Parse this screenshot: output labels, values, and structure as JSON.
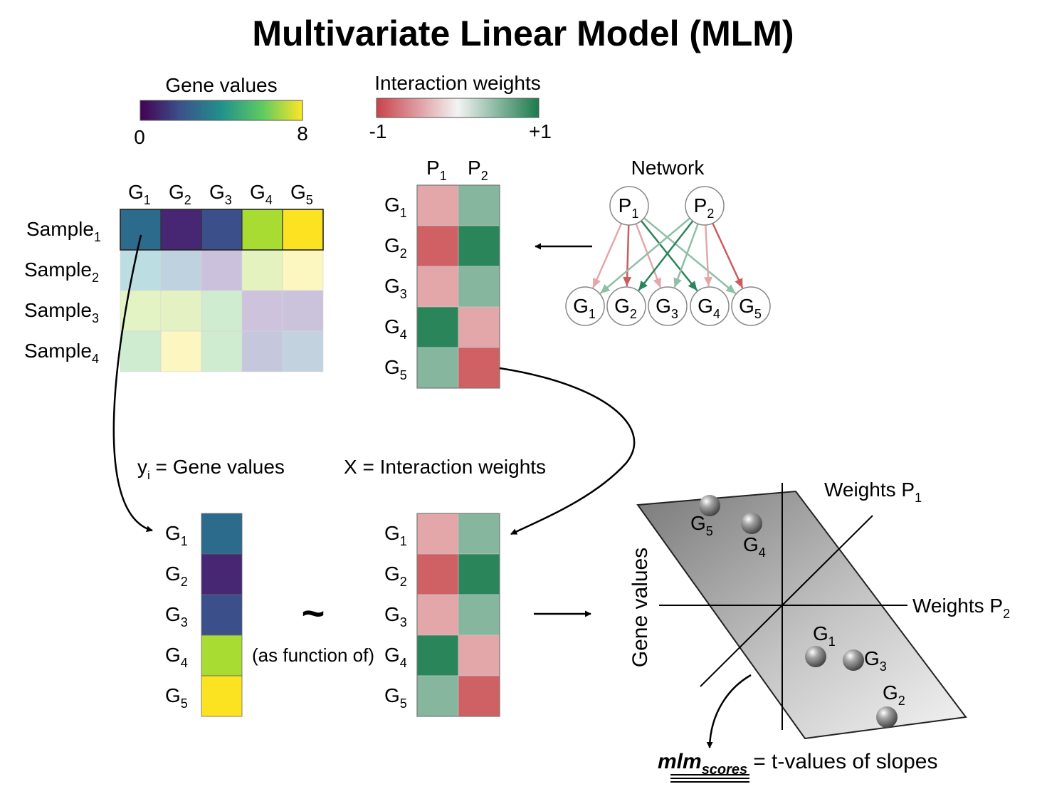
{
  "title": "Multivariate Linear Model (MLM)",
  "legends": {
    "gene_values": {
      "label": "Gene values",
      "min": "0",
      "max": "8",
      "colors": [
        "#440154",
        "#3b528b",
        "#21918c",
        "#5ec962",
        "#fde725"
      ]
    },
    "interaction_weights": {
      "label": "Interaction weights",
      "min": "-1",
      "max": "+1",
      "colors": [
        "#c8434b",
        "#f3f3f3",
        "#1b7a4b"
      ]
    }
  },
  "genes": [
    "G1",
    "G2",
    "G3",
    "G4",
    "G5"
  ],
  "pathways": [
    "P1",
    "P2"
  ],
  "samples": [
    "Sample1",
    "Sample2",
    "Sample3",
    "Sample4"
  ],
  "gene_matrix_colors": [
    [
      "#2d6b8c",
      "#472773",
      "#3b4f8b",
      "#a8dc32",
      "#fbe322"
    ],
    [
      "#bcdde1",
      "#bfd2df",
      "#cbc1dc",
      "#e4f2c0",
      "#fcf6c0"
    ],
    [
      "#e3f3c3",
      "#e4f2c3",
      "#cfebd0",
      "#cdc3dd",
      "#cbc3dc"
    ],
    [
      "#cfebd0",
      "#fcf6c0",
      "#cfebd0",
      "#c5c8dd",
      "#c2d3df"
    ]
  ],
  "weight_matrix_colors": [
    [
      "#e3a6a9",
      "#86b79e"
    ],
    [
      "#cf6064",
      "#2b855a"
    ],
    [
      "#e3a6a9",
      "#86b79e"
    ],
    [
      "#2b855a",
      "#e3a6a9"
    ],
    [
      "#86b79e",
      "#cf6064"
    ]
  ],
  "network": {
    "title": "Network",
    "edges": [
      {
        "from": "P1",
        "to": "G2",
        "color": "#cf5a5e"
      },
      {
        "from": "P1",
        "to": "G1",
        "color": "#e4a7a9"
      },
      {
        "from": "P1",
        "to": "G3",
        "color": "#e4a7a9"
      },
      {
        "from": "P1",
        "to": "G4",
        "color": "#2b855a"
      },
      {
        "from": "P1",
        "to": "G5",
        "color": "#8fbfa6"
      },
      {
        "from": "P2",
        "to": "G1",
        "color": "#8fbfa6"
      },
      {
        "from": "P2",
        "to": "G2",
        "color": "#2b855a"
      },
      {
        "from": "P2",
        "to": "G3",
        "color": "#8fbfa6"
      },
      {
        "from": "P2",
        "to": "G4",
        "color": "#e4a7a9"
      },
      {
        "from": "P2",
        "to": "G5",
        "color": "#cf5a5e"
      }
    ]
  },
  "equation": {
    "y_label": "yi = Gene values",
    "x_label": "X = Interaction weights",
    "tilde": "~",
    "as_function_of": "(as function of)"
  },
  "plot3d": {
    "axis_p1": "Weights P1",
    "axis_p2": "Weights P2",
    "axis_y": "Gene values",
    "points": [
      "G5",
      "G4",
      "G1",
      "G3",
      "G2"
    ]
  },
  "footer": {
    "score_label": "mlm",
    "score_subscript": "scores",
    "score_text": "= t-values of slopes"
  }
}
